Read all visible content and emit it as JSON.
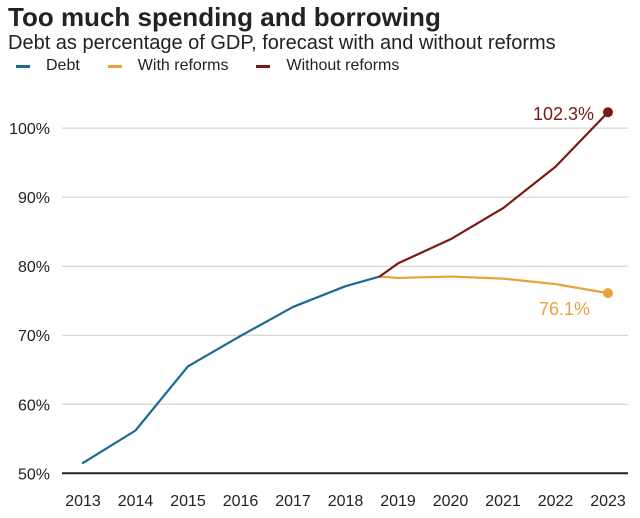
{
  "chart_data": {
    "type": "line",
    "title": "Too much spending and borrowing",
    "subtitle": "Debt as percentage of GDP, forecast with and without reforms",
    "xlabel": "",
    "ylabel": "",
    "x_ticks": [
      "2013",
      "2014",
      "2015",
      "2016",
      "2017",
      "2018",
      "2019",
      "2020",
      "2021",
      "2022",
      "2023"
    ],
    "y_ticks": [
      50,
      60,
      70,
      80,
      90,
      100
    ],
    "y_tick_labels": [
      "50%",
      "60%",
      "70%",
      "80%",
      "90%",
      "100%"
    ],
    "ylim": [
      50,
      105
    ],
    "xlim": [
      2012.7,
      2023.3
    ],
    "grid": true,
    "legend_position": "top-left",
    "series": [
      {
        "name": "Debt",
        "color": "#1a6b8f",
        "points": [
          [
            2013,
            51.5
          ],
          [
            2014,
            56.2
          ],
          [
            2015,
            65.5
          ],
          [
            2016,
            69.9
          ],
          [
            2017,
            74.1
          ],
          [
            2018,
            77.1
          ],
          [
            2018.65,
            78.5
          ]
        ]
      },
      {
        "name": "With reforms",
        "color": "#e8a33d",
        "points": [
          [
            2018.65,
            78.5
          ],
          [
            2019,
            78.3
          ],
          [
            2020,
            78.5
          ],
          [
            2021,
            78.2
          ],
          [
            2022,
            77.4
          ],
          [
            2023,
            76.1
          ]
        ],
        "end_label": "76.1%"
      },
      {
        "name": "Without reforms",
        "color": "#7a1a12",
        "points": [
          [
            2018.65,
            78.5
          ],
          [
            2019,
            80.4
          ],
          [
            2020,
            83.9
          ],
          [
            2021,
            88.4
          ],
          [
            2022,
            94.4
          ],
          [
            2023,
            102.3
          ]
        ],
        "end_label": "102.3%"
      }
    ]
  },
  "legend": [
    {
      "label": "Debt",
      "color": "#1a6b8f"
    },
    {
      "label": "With reforms",
      "color": "#e8a33d"
    },
    {
      "label": "Without reforms",
      "color": "#7a1a12"
    }
  ]
}
